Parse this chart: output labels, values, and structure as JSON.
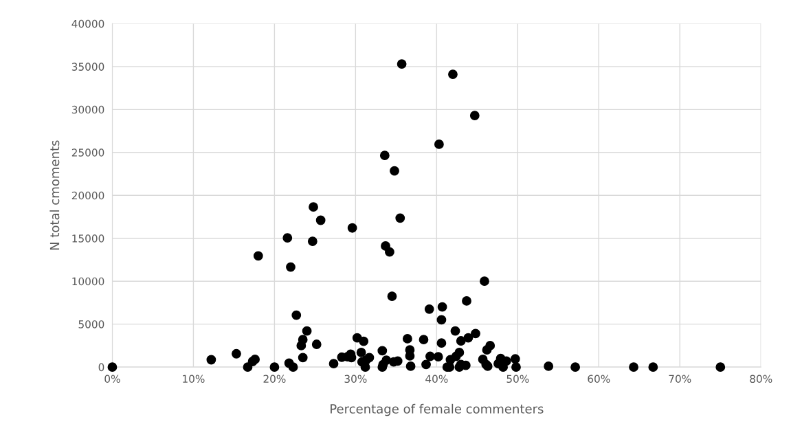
{
  "chart_data": {
    "type": "scatter",
    "xlabel": "Percentage of female commenters",
    "ylabel": "N total cmoments",
    "x": [
      0,
      12.2,
      15.3,
      17.3,
      17.6,
      16.7,
      18.0,
      20.0,
      21.6,
      21.8,
      22.0,
      22.3,
      22.7,
      23.3,
      23.5,
      23.5,
      24.0,
      24.7,
      24.8,
      25.2,
      25.7,
      27.3,
      28.3,
      29.0,
      29.4,
      29.5,
      29.6,
      30.2,
      30.7,
      30.8,
      31.0,
      31.2,
      31.3,
      31.7,
      33.3,
      33.3,
      33.4,
      33.6,
      33.7,
      33.8,
      34.2,
      34.5,
      34.8,
      34.7,
      35.2,
      35.5,
      35.7,
      36.4,
      36.7,
      36.7,
      36.8,
      38.4,
      38.7,
      39.1,
      39.2,
      40.2,
      40.3,
      40.6,
      40.7,
      40.6,
      41.3,
      41.6,
      41.7,
      42.0,
      42.3,
      42.4,
      42.8,
      42.8,
      43.0,
      43.0,
      43.7,
      43.9,
      43.6,
      44.7,
      44.8,
      45.7,
      45.9,
      46.2,
      46.1,
      46.3,
      46.6,
      47.6,
      47.9,
      48.2,
      48.6,
      49.7,
      49.8,
      53.8,
      57.1,
      64.3,
      66.7,
      75.0
    ],
    "values": [
      0,
      850,
      1550,
      650,
      900,
      0,
      12950,
      0,
      15050,
      450,
      11650,
      0,
      6050,
      2500,
      3200,
      1100,
      4200,
      14650,
      18650,
      2650,
      17100,
      400,
      1150,
      1200,
      1500,
      1100,
      16200,
      3400,
      1700,
      600,
      3000,
      0,
      800,
      1100,
      1900,
      0,
      300,
      24650,
      14100,
      800,
      13400,
      8250,
      22850,
      600,
      700,
      17350,
      35300,
      3300,
      2000,
      1300,
      100,
      3200,
      300,
      6750,
      1250,
      1200,
      25950,
      5500,
      7000,
      2800,
      0,
      0,
      850,
      34100,
      4200,
      1250,
      1700,
      0,
      3050,
      300,
      7700,
      3400,
      200,
      29300,
      3900,
      900,
      10000,
      2000,
      300,
      100,
      2500,
      400,
      1000,
      0,
      700,
      950,
      0,
      100,
      0,
      0,
      0,
      0
    ],
    "color": "#000000",
    "marker": "circle",
    "grid": true,
    "xlim": [
      0,
      80
    ],
    "xticks": [
      {
        "value": 0,
        "label": "0%"
      },
      {
        "value": 10,
        "label": "10%"
      },
      {
        "value": 20,
        "label": "20%"
      },
      {
        "value": 30,
        "label": "30%"
      },
      {
        "value": 40,
        "label": "40%"
      },
      {
        "value": 50,
        "label": "50%"
      },
      {
        "value": 60,
        "label": "60%"
      },
      {
        "value": 70,
        "label": "70%"
      },
      {
        "value": 80,
        "label": "80%"
      }
    ],
    "ylim": [
      0,
      40000
    ],
    "yticks": [
      0,
      5000,
      10000,
      15000,
      20000,
      25000,
      30000,
      35000,
      40000
    ]
  }
}
